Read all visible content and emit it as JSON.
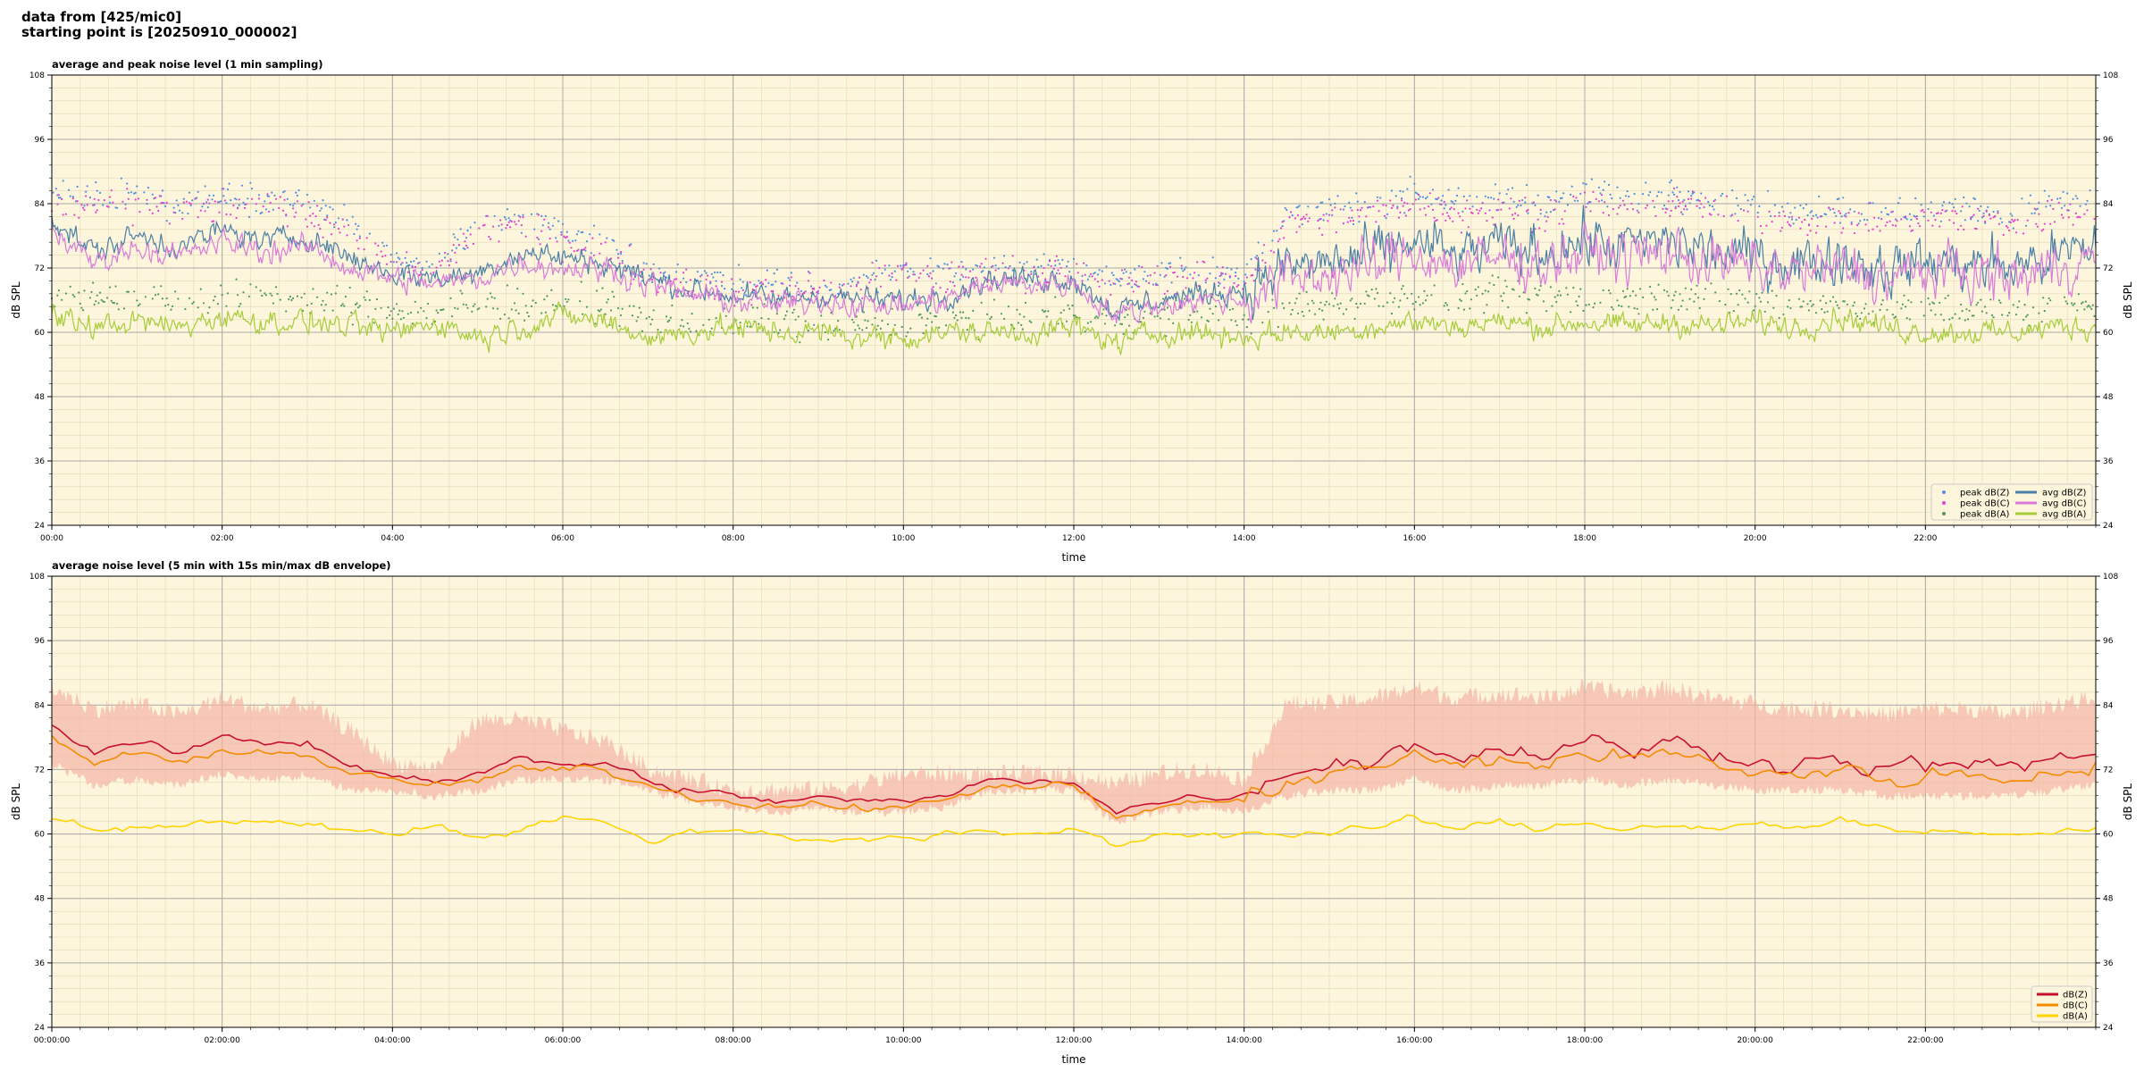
{
  "header": {
    "line1": "data from [425/mic0]",
    "line2": "starting point is [20250910_000002]"
  },
  "colors": {
    "background": "#fdf6dc",
    "peak_z": "#4e8fe0",
    "peak_c": "#e43fd0",
    "peak_a": "#4c9a5a",
    "avg_z": "#4a7fa6",
    "avg_c": "#d97bd9",
    "avg_a": "#a6cc3a",
    "env_z": "#c8102e",
    "env_c": "#f28c00",
    "env_a": "#ffd400",
    "envelope_fill": "#f5b5a5"
  },
  "chart_data": [
    {
      "type": "line",
      "title": "average and peak noise level (1 min sampling)",
      "xlabel": "time",
      "ylabel": "dB SPL",
      "ylim": [
        24,
        108
      ],
      "xlim_hours": [
        0,
        24
      ],
      "yticks": [
        "24",
        "36",
        "48",
        "60",
        "72",
        "84",
        "96",
        "108"
      ],
      "xticks": [
        "00:00",
        "02:00",
        "04:00",
        "06:00",
        "08:00",
        "10:00",
        "12:00",
        "14:00",
        "16:00",
        "18:00",
        "20:00",
        "22:00"
      ],
      "grid": true,
      "legend_position": "bottom-right",
      "x_hours": [
        0,
        0.5,
        1,
        1.5,
        2,
        2.5,
        3,
        3.5,
        4,
        4.5,
        5,
        5.5,
        6,
        6.5,
        7,
        7.5,
        8,
        8.5,
        9,
        9.5,
        10,
        10.5,
        11,
        11.5,
        12,
        12.5,
        13,
        13.5,
        14,
        14.5,
        15,
        15.5,
        16,
        16.5,
        17,
        17.5,
        18,
        18.5,
        19,
        19.5,
        20,
        20.5,
        21,
        21.5,
        22,
        22.5,
        23,
        23.5,
        24
      ],
      "series": [
        {
          "name": "peak dB(Z)",
          "kind": "scatter",
          "values": [
            86,
            85,
            86,
            84,
            85,
            85,
            84,
            81,
            73,
            72,
            81,
            82,
            79,
            77,
            72,
            70,
            69,
            69,
            68,
            70,
            72,
            71,
            72,
            72,
            72,
            70,
            71,
            72,
            70,
            82,
            83,
            84,
            86,
            84,
            85,
            84,
            86,
            85,
            86,
            85,
            84,
            83,
            83,
            82,
            83,
            83,
            82,
            84,
            85
          ]
        },
        {
          "name": "peak dB(C)",
          "kind": "scatter",
          "values": [
            84,
            83,
            84,
            83,
            83,
            84,
            82,
            79,
            72,
            71,
            79,
            80,
            77,
            75,
            71,
            69,
            68,
            68,
            67,
            69,
            71,
            70,
            71,
            71,
            71,
            69,
            70,
            71,
            69,
            80,
            81,
            82,
            84,
            82,
            83,
            82,
            84,
            83,
            84,
            83,
            82,
            81,
            81,
            80,
            81,
            81,
            80,
            82,
            83
          ]
        },
        {
          "name": "peak dB(A)",
          "kind": "scatter",
          "values": [
            67,
            66,
            67,
            66,
            67,
            67,
            66,
            65,
            64,
            64,
            65,
            65,
            66,
            65,
            62,
            62,
            62,
            62,
            61,
            61,
            62,
            62,
            63,
            63,
            63,
            62,
            63,
            64,
            63,
            64,
            65,
            66,
            67,
            66,
            67,
            66,
            67,
            66,
            67,
            66,
            66,
            65,
            65,
            64,
            64,
            64,
            64,
            65,
            65
          ]
        },
        {
          "name": "avg dB(Z)",
          "kind": "line",
          "values": [
            81,
            75,
            78,
            76,
            79,
            77,
            78,
            74,
            71,
            70,
            71,
            75,
            74,
            73,
            70,
            68,
            67,
            66,
            67,
            66,
            66,
            67,
            70,
            70,
            70,
            64,
            66,
            67,
            68,
            72,
            73,
            74,
            77,
            74,
            76,
            75,
            77,
            76,
            77,
            75,
            74,
            73,
            74,
            72,
            73,
            73,
            72,
            74,
            76
          ]
        },
        {
          "name": "avg dB(C)",
          "kind": "line",
          "values": [
            79,
            73,
            76,
            74,
            77,
            75,
            76,
            72,
            70,
            69,
            70,
            73,
            72,
            72,
            69,
            67,
            66,
            65,
            66,
            65,
            65,
            66,
            69,
            69,
            69,
            63,
            65,
            66,
            66,
            70,
            71,
            72,
            75,
            72,
            74,
            73,
            75,
            74,
            75,
            73,
            72,
            71,
            72,
            70,
            71,
            71,
            70,
            72,
            74
          ]
        },
        {
          "name": "avg dB(A)",
          "kind": "line",
          "values": [
            63,
            61,
            62,
            61,
            63,
            62,
            62,
            61,
            60,
            62,
            59,
            61,
            63,
            62,
            59,
            60,
            61,
            60,
            60,
            59,
            59,
            60,
            60,
            60,
            61,
            58,
            60,
            60,
            59,
            60,
            60,
            61,
            62,
            61,
            62,
            61,
            62,
            61,
            62,
            61,
            62,
            61,
            63,
            61,
            60,
            60,
            60,
            61,
            61
          ]
        }
      ]
    },
    {
      "type": "line",
      "title": "average noise level (5 min with 15s min/max dB envelope)",
      "xlabel": "time",
      "ylabel": "dB SPL",
      "ylim": [
        24,
        108
      ],
      "xlim_hours": [
        0,
        24
      ],
      "yticks": [
        "24",
        "36",
        "48",
        "60",
        "72",
        "84",
        "96",
        "108"
      ],
      "xticks": [
        "00:00:00",
        "02:00:00",
        "04:00:00",
        "06:00:00",
        "08:00:00",
        "10:00:00",
        "12:00:00",
        "14:00:00",
        "16:00:00",
        "18:00:00",
        "20:00:00",
        "22:00:00"
      ],
      "grid": true,
      "legend_position": "bottom-right",
      "x_hours": [
        0,
        0.5,
        1,
        1.5,
        2,
        2.5,
        3,
        3.5,
        4,
        4.5,
        5,
        5.5,
        6,
        6.5,
        7,
        7.5,
        8,
        8.5,
        9,
        9.5,
        10,
        10.5,
        11,
        11.5,
        12,
        12.5,
        13,
        13.5,
        14,
        14.5,
        15,
        15.5,
        16,
        16.5,
        17,
        17.5,
        18,
        18.5,
        19,
        19.5,
        20,
        20.5,
        21,
        21.5,
        22,
        22.5,
        23,
        23.5,
        24
      ],
      "envelope": {
        "min": [
          74,
          70,
          71,
          70,
          72,
          71,
          72,
          69,
          69,
          68,
          69,
          71,
          71,
          71,
          69,
          67,
          66,
          65,
          66,
          65,
          65,
          66,
          69,
          69,
          69,
          63,
          65,
          66,
          65,
          68,
          69,
          69,
          71,
          69,
          70,
          70,
          71,
          70,
          71,
          70,
          69,
          69,
          69,
          68,
          68,
          68,
          68,
          69,
          70
        ],
        "max": [
          88,
          84,
          85,
          83,
          86,
          84,
          85,
          80,
          74,
          73,
          82,
          82,
          80,
          78,
          73,
          71,
          69,
          69,
          69,
          70,
          72,
          72,
          72,
          72,
          72,
          70,
          72,
          73,
          71,
          85,
          85,
          86,
          88,
          86,
          87,
          86,
          88,
          87,
          88,
          86,
          85,
          84,
          84,
          83,
          84,
          84,
          83,
          85,
          86
        ]
      },
      "series": [
        {
          "name": "dB(Z)",
          "kind": "line",
          "values": [
            80,
            75,
            77,
            75,
            78,
            77,
            77,
            73,
            71,
            70,
            71,
            74,
            73,
            73,
            70,
            68,
            67,
            66,
            67,
            66,
            66,
            67,
            70,
            70,
            70,
            64,
            66,
            67,
            67,
            72,
            73,
            74,
            77,
            74,
            76,
            75,
            77,
            76,
            77,
            75,
            74,
            73,
            74,
            72,
            73,
            73,
            72,
            74,
            75
          ]
        },
        {
          "name": "dB(C)",
          "kind": "line",
          "values": [
            78,
            73,
            75,
            73,
            76,
            75,
            75,
            71,
            70,
            69,
            70,
            72,
            72,
            72,
            69,
            67,
            66,
            65,
            66,
            65,
            65,
            66,
            69,
            69,
            69,
            63,
            65,
            66,
            66,
            70,
            71,
            72,
            75,
            72,
            74,
            73,
            75,
            74,
            75,
            73,
            72,
            71,
            72,
            70,
            71,
            71,
            70,
            72,
            73
          ]
        },
        {
          "name": "dB(A)",
          "kind": "line",
          "values": [
            63,
            61,
            61,
            61,
            63,
            62,
            62,
            61,
            60,
            62,
            59,
            61,
            63,
            62,
            59,
            60,
            61,
            60,
            59,
            59,
            59,
            60,
            60,
            60,
            61,
            58,
            60,
            60,
            60,
            60,
            60,
            61,
            63,
            61,
            62,
            61,
            62,
            61,
            62,
            61,
            62,
            61,
            63,
            61,
            60,
            60,
            60,
            60,
            61
          ]
        }
      ]
    }
  ]
}
